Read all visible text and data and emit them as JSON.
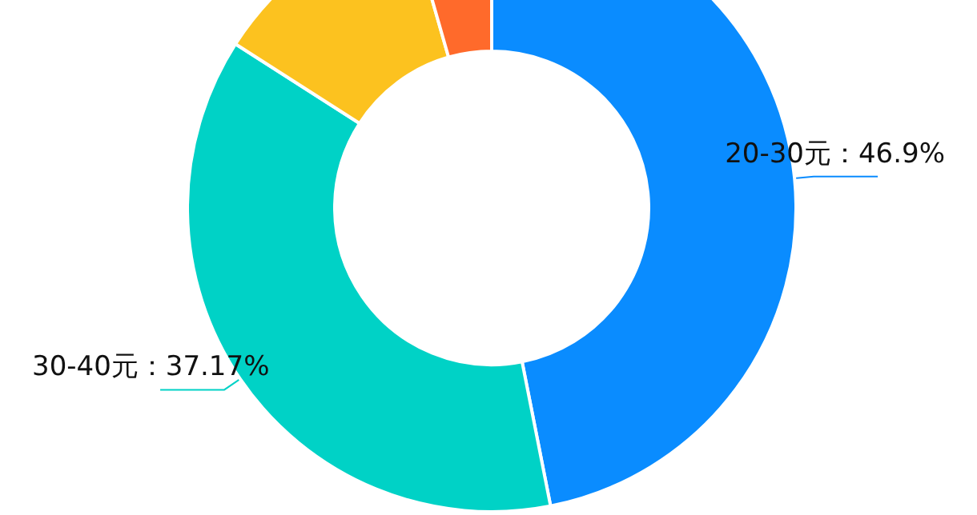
{
  "chart_data": {
    "type": "donut",
    "categories": [
      "20-30元",
      "30-40元",
      null,
      null
    ],
    "values": [
      46.9,
      37.17,
      11.5,
      4.43
    ],
    "value_labels": [
      "46.9%",
      "37.17%",
      null,
      null
    ],
    "colors": [
      "#0a8cff",
      "#00d2c6",
      "#fcc21f",
      "#ff6a2b"
    ]
  }
}
